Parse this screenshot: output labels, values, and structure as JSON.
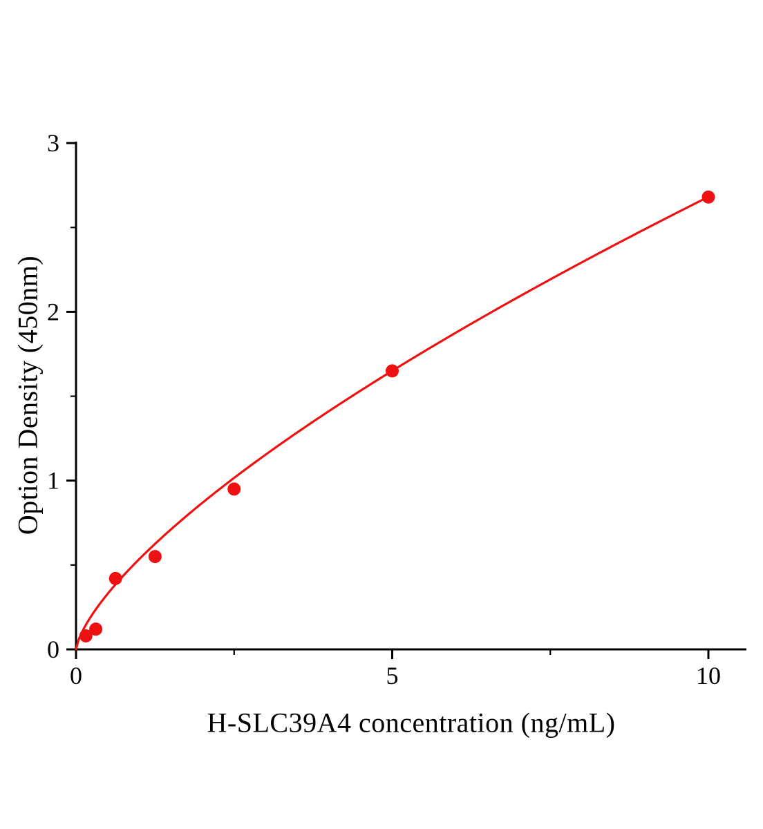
{
  "chart_data": {
    "type": "scatter",
    "title": "",
    "xlabel": "H-SLC39A4 concentration (ng/mL)",
    "ylabel": "Option Density (450nm)",
    "points": {
      "x": [
        0.156,
        0.3125,
        0.625,
        1.25,
        2.5,
        5,
        10
      ],
      "y": [
        0.08,
        0.12,
        0.42,
        0.55,
        0.95,
        1.65,
        2.68
      ]
    },
    "fit_curve": {
      "type": "power",
      "a": 0.535,
      "b": 0.7,
      "x_range": [
        0.0,
        10.0
      ]
    },
    "axes": {
      "xlim": [
        0,
        10.6
      ],
      "ylim": [
        0,
        3.01
      ],
      "x_major_ticks": [
        0,
        5,
        10
      ],
      "x_tick_labels": [
        "0",
        "5",
        "10"
      ],
      "x_minor_ticks": [
        2.5,
        7.5
      ],
      "y_major_ticks": [
        0,
        1,
        2,
        3
      ],
      "y_tick_labels": [
        "0",
        "1",
        "2",
        "3"
      ],
      "y_minor_ticks": [
        0.5,
        1.5,
        2.5
      ]
    },
    "legend": null,
    "grid": false,
    "colors": {
      "line": "#ee1111",
      "marker": "#ee1111",
      "axis": "#000000"
    }
  }
}
